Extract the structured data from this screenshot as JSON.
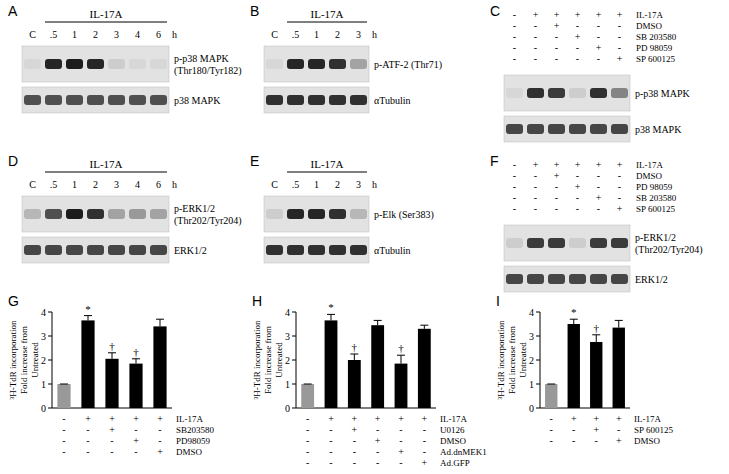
{
  "chart_data": [
    {
      "type": "bar",
      "title": "G",
      "categories": [
        null,
        null,
        null,
        null,
        null
      ],
      "values": [
        1,
        3.65,
        2.05,
        1.85,
        3.4
      ],
      "errors": [
        0,
        0.2,
        0.25,
        0.2,
        0.3
      ],
      "colors": [
        "#999999",
        "#000000",
        "#000000",
        "#000000",
        "#000000"
      ],
      "annotations": [
        null,
        "*",
        "†",
        "†",
        null
      ],
      "y_label": [
        "³H-TdR incorporation",
        "Fold increase from",
        "Untreated"
      ],
      "ylim": [
        0,
        4
      ],
      "yticks": [
        0,
        1,
        2,
        3,
        4
      ],
      "conditions": [
        {
          "label": "IL-17A",
          "signs": [
            "-",
            "+",
            "+",
            "+",
            "+"
          ]
        },
        {
          "label": "SB203580",
          "signs": [
            "-",
            "-",
            "+",
            "-",
            "-"
          ]
        },
        {
          "label": "PD98059",
          "signs": [
            "-",
            "-",
            "-",
            "+",
            "-"
          ]
        },
        {
          "label": "DMSO",
          "signs": [
            "-",
            "-",
            "-",
            "-",
            "+"
          ]
        }
      ]
    },
    {
      "type": "bar",
      "title": "H",
      "categories": [
        null,
        null,
        null,
        null,
        null,
        null
      ],
      "values": [
        1,
        3.65,
        2.0,
        3.45,
        1.85,
        3.3
      ],
      "errors": [
        0,
        0.25,
        0.25,
        0.2,
        0.35,
        0.15
      ],
      "colors": [
        "#999999",
        "#000000",
        "#000000",
        "#000000",
        "#000000",
        "#000000"
      ],
      "annotations": [
        null,
        "*",
        "†",
        null,
        "†",
        null
      ],
      "y_label": [
        "³H-TdR incorporation",
        "Fold increase from",
        "Untreated"
      ],
      "ylim": [
        0,
        4
      ],
      "yticks": [
        0,
        1,
        2,
        3,
        4
      ],
      "conditions": [
        {
          "label": "IL-17A",
          "signs": [
            "-",
            "+",
            "+",
            "+",
            "+",
            "+"
          ]
        },
        {
          "label": "U0126",
          "signs": [
            "-",
            "-",
            "+",
            "-",
            "-",
            "-"
          ]
        },
        {
          "label": "DMSO",
          "signs": [
            "-",
            "-",
            "-",
            "+",
            "-",
            "-"
          ]
        },
        {
          "label": "Ad.dnMEK1",
          "signs": [
            "-",
            "-",
            "-",
            "-",
            "+",
            "-"
          ]
        },
        {
          "label": "Ad.GFP",
          "signs": [
            "-",
            "-",
            "-",
            "-",
            "-",
            "+"
          ]
        }
      ]
    },
    {
      "type": "bar",
      "title": "I",
      "categories": [
        null,
        null,
        null,
        null
      ],
      "values": [
        1,
        3.5,
        2.75,
        3.35
      ],
      "errors": [
        0,
        0.2,
        0.3,
        0.3
      ],
      "colors": [
        "#999999",
        "#000000",
        "#000000",
        "#000000"
      ],
      "annotations": [
        null,
        "*",
        "†",
        null
      ],
      "y_label": [
        "³H-TdR incorporation",
        "Fold increase from",
        "Untreated"
      ],
      "ylim": [
        0,
        4
      ],
      "yticks": [
        0,
        1,
        2,
        3,
        4
      ],
      "conditions": [
        {
          "label": "IL-17A",
          "signs": [
            "-",
            "+",
            "+",
            "+"
          ]
        },
        {
          "label": "SP 600125",
          "signs": [
            "-",
            "-",
            "+",
            "-"
          ]
        },
        {
          "label": "DMSO",
          "signs": [
            "-",
            "-",
            "-",
            "+"
          ]
        }
      ]
    }
  ],
  "blots": [
    {
      "label": "A",
      "header": "IL-17A",
      "lanes": [
        "C",
        ".5",
        "1",
        "2",
        "3",
        "4",
        "6"
      ],
      "unit": "h",
      "rows": [
        {
          "name": "p-p38 MAPK",
          "sublabel": "(Thr180/Tyr182)",
          "bands": [
            0.05,
            0.9,
            0.95,
            0.9,
            0.1,
            0.05,
            0.05
          ]
        },
        {
          "name": "p38 MAPK",
          "sublabel": null,
          "bands": [
            0.7,
            0.7,
            0.7,
            0.7,
            0.7,
            0.7,
            0.7
          ]
        }
      ]
    },
    {
      "label": "B",
      "header": "IL-17A",
      "lanes": [
        "C",
        ".5",
        "1",
        "2",
        "3"
      ],
      "unit": "h",
      "rows": [
        {
          "name": "p-ATF-2 (Thr71)",
          "sublabel": null,
          "bands": [
            0.05,
            0.9,
            0.9,
            0.85,
            0.3
          ]
        },
        {
          "name": "αTubulin",
          "sublabel": null,
          "bands": [
            0.85,
            0.85,
            0.85,
            0.85,
            0.85
          ]
        }
      ]
    },
    {
      "label": "C",
      "treatments": [
        {
          "label": "IL-17A",
          "signs": [
            "-",
            "+",
            "+",
            "+",
            "+",
            "+"
          ]
        },
        {
          "label": "DMSO",
          "signs": [
            "-",
            "-",
            "+",
            "-",
            "-",
            "-"
          ]
        },
        {
          "label": "SB 203580",
          "signs": [
            "-",
            "-",
            "-",
            "+",
            "-",
            "-"
          ]
        },
        {
          "label": "PD 98059",
          "signs": [
            "-",
            "-",
            "-",
            "-",
            "+",
            "-"
          ]
        },
        {
          "label": "SP 600125",
          "signs": [
            "-",
            "-",
            "-",
            "-",
            "-",
            "+"
          ]
        }
      ],
      "rows": [
        {
          "name": "p-p38 MAPK",
          "sublabel": null,
          "bands": [
            0.05,
            0.85,
            0.8,
            0.1,
            0.85,
            0.45
          ]
        },
        {
          "name": "p38 MAPK",
          "sublabel": null,
          "bands": [
            0.75,
            0.75,
            0.75,
            0.75,
            0.75,
            0.75
          ]
        }
      ]
    },
    {
      "label": "D",
      "header": "IL-17A",
      "lanes": [
        "C",
        ".5",
        "1",
        "2",
        "3",
        "4",
        "6"
      ],
      "unit": "h",
      "rows": [
        {
          "name": "p-ERK1/2",
          "sublabel": "(Thr202/Tyr204)",
          "bands": [
            0.2,
            0.7,
            0.95,
            0.85,
            0.3,
            0.35,
            0.3
          ]
        },
        {
          "name": "ERK1/2",
          "sublabel": null,
          "bands": [
            0.75,
            0.75,
            0.75,
            0.75,
            0.75,
            0.75,
            0.75
          ]
        }
      ]
    },
    {
      "label": "E",
      "header": "IL-17A",
      "lanes": [
        "C",
        ".5",
        "1",
        "2",
        "3"
      ],
      "unit": "h",
      "rows": [
        {
          "name": "p-Elk (Ser383)",
          "sublabel": null,
          "bands": [
            0.1,
            0.9,
            0.9,
            0.85,
            0.2
          ]
        },
        {
          "name": "αTubulin",
          "sublabel": null,
          "bands": [
            0.85,
            0.85,
            0.85,
            0.85,
            0.85
          ]
        }
      ]
    },
    {
      "label": "F",
      "treatments": [
        {
          "label": "IL-17A",
          "signs": [
            "-",
            "+",
            "+",
            "+",
            "+",
            "+"
          ]
        },
        {
          "label": "DMSO",
          "signs": [
            "-",
            "-",
            "+",
            "-",
            "-",
            "-"
          ]
        },
        {
          "label": "PD 98059",
          "signs": [
            "-",
            "-",
            "-",
            "+",
            "-",
            "-"
          ]
        },
        {
          "label": "SB 203580",
          "signs": [
            "-",
            "-",
            "-",
            "-",
            "+",
            "-"
          ]
        },
        {
          "label": "SP 600125",
          "signs": [
            "-",
            "-",
            "-",
            "-",
            "-",
            "+"
          ]
        }
      ],
      "rows": [
        {
          "name": "p-ERK1/2",
          "sublabel": "(Thr202/Tyr204)",
          "bands": [
            0.1,
            0.8,
            0.8,
            0.1,
            0.8,
            0.8
          ]
        },
        {
          "name": "ERK1/2",
          "sublabel": null,
          "bands": [
            0.75,
            0.75,
            0.75,
            0.75,
            0.75,
            0.75
          ]
        }
      ]
    }
  ]
}
